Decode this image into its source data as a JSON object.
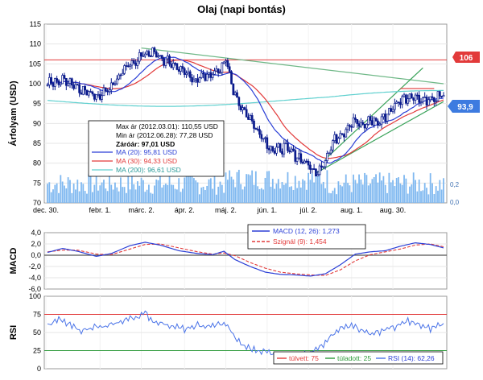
{
  "title": "Olaj (napi bontás)",
  "colors": {
    "candle": "#0a1a8c",
    "ma20": "#2b3fd6",
    "ma30": "#e23a3a",
    "ma200": "#5fd0cf",
    "volume": "#7fb8f0",
    "trend_up": "#3aa35a",
    "trend_down": "#6fb887",
    "resistance": "#e23a3a",
    "macd": "#2b3fd6",
    "signal": "#e23a3a",
    "rsi": "#4b74e8",
    "overbought": "#e23a3a",
    "oversold": "#2d9a3a",
    "badge_red": "#e23a3a",
    "badge_blue": "#3d7be0",
    "grid": "#e6e6e6",
    "frame": "#999999"
  },
  "x_tick_labels": [
    "dec. 30.",
    "febr. 1.",
    "márc. 2.",
    "ápr. 2.",
    "máj. 2.",
    "jún. 1.",
    "júl. 2.",
    "aug. 1.",
    "aug. 30."
  ],
  "chart_data": [
    {
      "type": "candlestick",
      "ylabel": "Árfolyam (USD)",
      "ylim": [
        70,
        115
      ],
      "y_ticks": [
        "70",
        "75",
        "80",
        "85",
        "90",
        "95",
        "100",
        "105",
        "110",
        "115"
      ],
      "volume_axis_ticks": [
        "0,0",
        "0,2"
      ],
      "price_badges": [
        {
          "label": "106",
          "value": 106
        },
        {
          "label": "93,9",
          "value": 93.9
        }
      ],
      "info_box": {
        "max_label": "Max ár (2012.03.01): 110,55 USD",
        "min_label": "Min ár (2012.06.28): 77,28 USD",
        "close_label": "Záróár: 97,01 USD",
        "ma20_label": "MA (20): 95,81 USD",
        "ma30_label": "MA (30): 94,33 USD",
        "ma200_label": "MA (200): 96,61 USD"
      },
      "anchors": [
        [
          0,
          100
        ],
        [
          10,
          101
        ],
        [
          20,
          98
        ],
        [
          28,
          97
        ],
        [
          35,
          100
        ],
        [
          42,
          104
        ],
        [
          50,
          107
        ],
        [
          55,
          108
        ],
        [
          62,
          106
        ],
        [
          70,
          104
        ],
        [
          78,
          101
        ],
        [
          86,
          102
        ],
        [
          92,
          104
        ],
        [
          95,
          106
        ],
        [
          98,
          100
        ],
        [
          102,
          95
        ],
        [
          108,
          91
        ],
        [
          114,
          87
        ],
        [
          120,
          83
        ],
        [
          126,
          84
        ],
        [
          132,
          82
        ],
        [
          138,
          80
        ],
        [
          143,
          77.3
        ],
        [
          148,
          81
        ],
        [
          153,
          86
        ],
        [
          158,
          88
        ],
        [
          163,
          91
        ],
        [
          168,
          89
        ],
        [
          172,
          91
        ],
        [
          176,
          90
        ],
        [
          182,
          93
        ],
        [
          188,
          96
        ],
        [
          194,
          97
        ],
        [
          200,
          96
        ],
        [
          206,
          96
        ],
        [
          210,
          97
        ]
      ],
      "ma20_at_end": 95.81,
      "ma30_at_end": 94.33,
      "ma200_at_end": 96.61,
      "resistance_value": 106,
      "trend_down": [
        [
          50,
          109
        ],
        [
          211,
          100
        ]
      ],
      "trend_up_lower": [
        [
          143,
          77.5
        ],
        [
          211,
          95.5
        ]
      ],
      "trend_up_upper": [
        [
          148,
          81
        ],
        [
          200,
          104
        ]
      ],
      "highlight": [
        [
          188,
          98.8
        ],
        [
          206,
          98.8
        ]
      ]
    },
    {
      "type": "line",
      "ylabel": "MACD",
      "ylim": [
        -6,
        4
      ],
      "y_ticks": [
        "-6,0",
        "-4,0",
        "-2,0",
        "0,0",
        "2,0",
        "4,0"
      ],
      "series": [
        {
          "name": "MACD (12, 26): 1,273",
          "anchors": [
            [
              0,
              0.5
            ],
            [
              8,
              1.2
            ],
            [
              16,
              0.7
            ],
            [
              26,
              -0.2
            ],
            [
              34,
              0.3
            ],
            [
              44,
              1.7
            ],
            [
              52,
              2.3
            ],
            [
              60,
              1.8
            ],
            [
              70,
              0.8
            ],
            [
              80,
              0.3
            ],
            [
              88,
              0.1
            ],
            [
              94,
              0.7
            ],
            [
              100,
              -0.8
            ],
            [
              108,
              -2.0
            ],
            [
              116,
              -3.0
            ],
            [
              124,
              -3.4
            ],
            [
              132,
              -3.5
            ],
            [
              140,
              -3.7
            ],
            [
              148,
              -3.3
            ],
            [
              156,
              -1.7
            ],
            [
              164,
              0.2
            ],
            [
              172,
              0.6
            ],
            [
              180,
              0.8
            ],
            [
              188,
              1.6
            ],
            [
              196,
              2.2
            ],
            [
              204,
              1.9
            ],
            [
              211,
              1.3
            ]
          ]
        },
        {
          "name": "Szignál (9): 1,454",
          "anchors": [
            [
              0,
              0.6
            ],
            [
              8,
              0.9
            ],
            [
              16,
              0.9
            ],
            [
              26,
              0.2
            ],
            [
              34,
              0.1
            ],
            [
              44,
              1.1
            ],
            [
              52,
              1.9
            ],
            [
              60,
              2.0
            ],
            [
              70,
              1.3
            ],
            [
              80,
              0.6
            ],
            [
              88,
              0.2
            ],
            [
              94,
              0.4
            ],
            [
              100,
              -0.1
            ],
            [
              108,
              -1.3
            ],
            [
              116,
              -2.3
            ],
            [
              124,
              -3.0
            ],
            [
              132,
              -3.3
            ],
            [
              140,
              -3.5
            ],
            [
              148,
              -3.6
            ],
            [
              156,
              -2.6
            ],
            [
              164,
              -1.0
            ],
            [
              172,
              0.1
            ],
            [
              180,
              0.6
            ],
            [
              188,
              1.1
            ],
            [
              196,
              1.8
            ],
            [
              204,
              2.0
            ],
            [
              211,
              1.5
            ]
          ]
        }
      ]
    },
    {
      "type": "line",
      "ylabel": "RSI",
      "ylim": [
        0,
        100
      ],
      "y_ticks": [
        "0",
        "25",
        "50",
        "75",
        "100"
      ],
      "overbought": 75,
      "oversold": 25,
      "legend": {
        "overbought_label": "túlvett: 75",
        "oversold_label": "túladott: 25",
        "rsi_label": "RSI (14): 62,26"
      },
      "series": [
        {
          "name": "RSI (14): 62,26",
          "anchors": [
            [
              0,
              60
            ],
            [
              6,
              68
            ],
            [
              12,
              60
            ],
            [
              18,
              52
            ],
            [
              24,
              58
            ],
            [
              30,
              57
            ],
            [
              36,
              62
            ],
            [
              42,
              68
            ],
            [
              48,
              72
            ],
            [
              52,
              77
            ],
            [
              56,
              66
            ],
            [
              62,
              62
            ],
            [
              68,
              58
            ],
            [
              74,
              54
            ],
            [
              80,
              60
            ],
            [
              86,
              58
            ],
            [
              92,
              62
            ],
            [
              96,
              60
            ],
            [
              100,
              42
            ],
            [
              104,
              32
            ],
            [
              110,
              26
            ],
            [
              118,
              23
            ],
            [
              126,
              20
            ],
            [
              134,
              18
            ],
            [
              140,
              22
            ],
            [
              146,
              30
            ],
            [
              150,
              42
            ],
            [
              156,
              55
            ],
            [
              162,
              62
            ],
            [
              168,
              52
            ],
            [
              174,
              48
            ],
            [
              180,
              55
            ],
            [
              186,
              58
            ],
            [
              192,
              66
            ],
            [
              198,
              60
            ],
            [
              204,
              55
            ],
            [
              208,
              60
            ],
            [
              211,
              62
            ]
          ]
        }
      ]
    }
  ]
}
